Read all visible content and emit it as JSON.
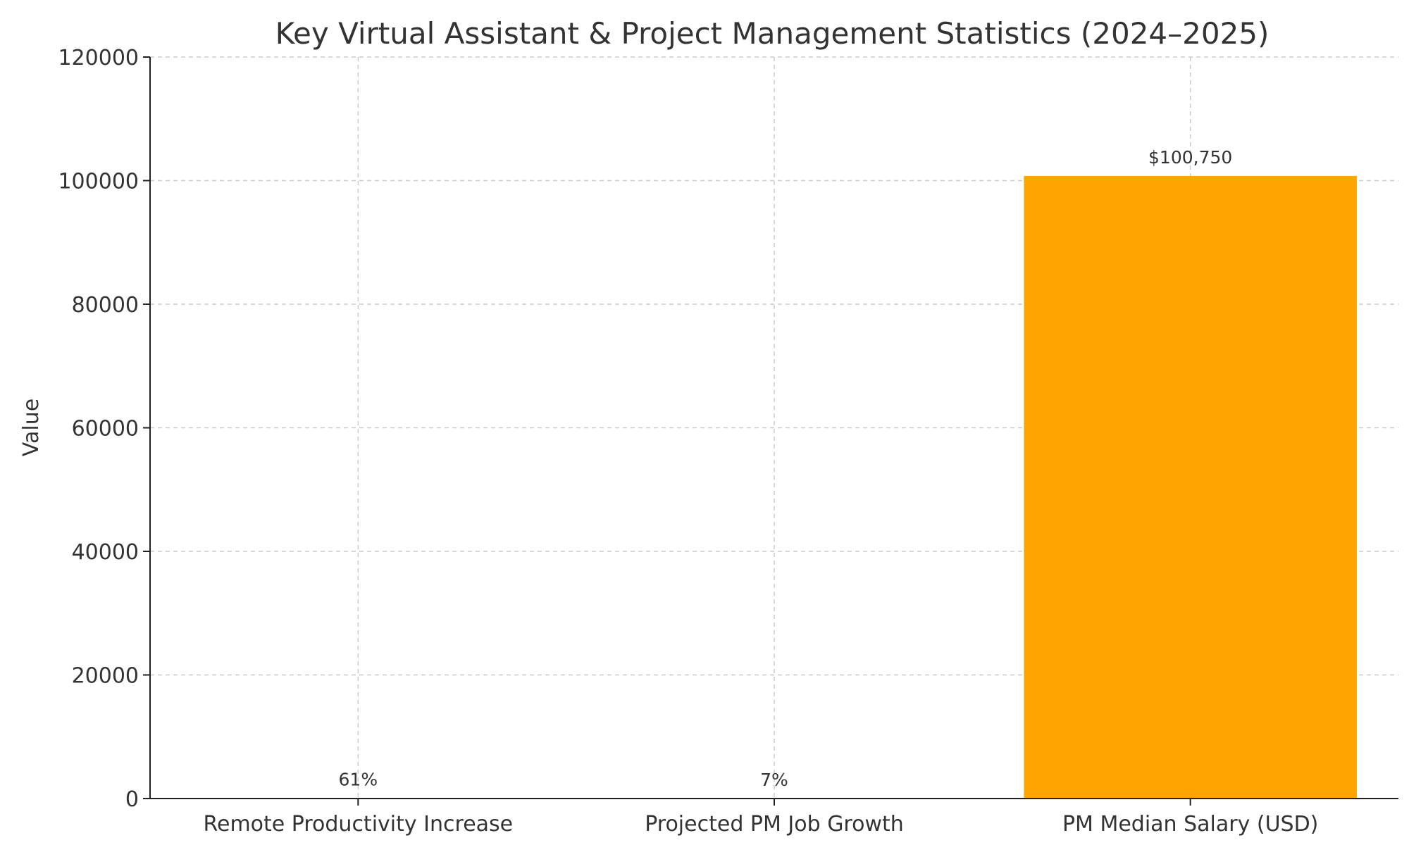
{
  "chart_data": {
    "type": "bar",
    "title": "Key Virtual Assistant & Project Management Statistics (2024–2025)",
    "xlabel": "",
    "ylabel": "Value",
    "categories": [
      "Remote Productivity Increase",
      "Projected PM Job Growth",
      "PM Median Salary (USD)"
    ],
    "values": [
      61,
      7,
      100750
    ],
    "data_labels": [
      "61%",
      "7%",
      "$100,750"
    ],
    "ylim": [
      0,
      120000
    ],
    "yticks": [
      0,
      20000,
      40000,
      60000,
      80000,
      100000,
      120000
    ],
    "ytick_labels": [
      "0",
      "20000",
      "40000",
      "60000",
      "80000",
      "100000",
      "120000"
    ],
    "grid": true,
    "bar_colors": [
      "#ffa500",
      "#ffa500",
      "#ffa500"
    ]
  }
}
